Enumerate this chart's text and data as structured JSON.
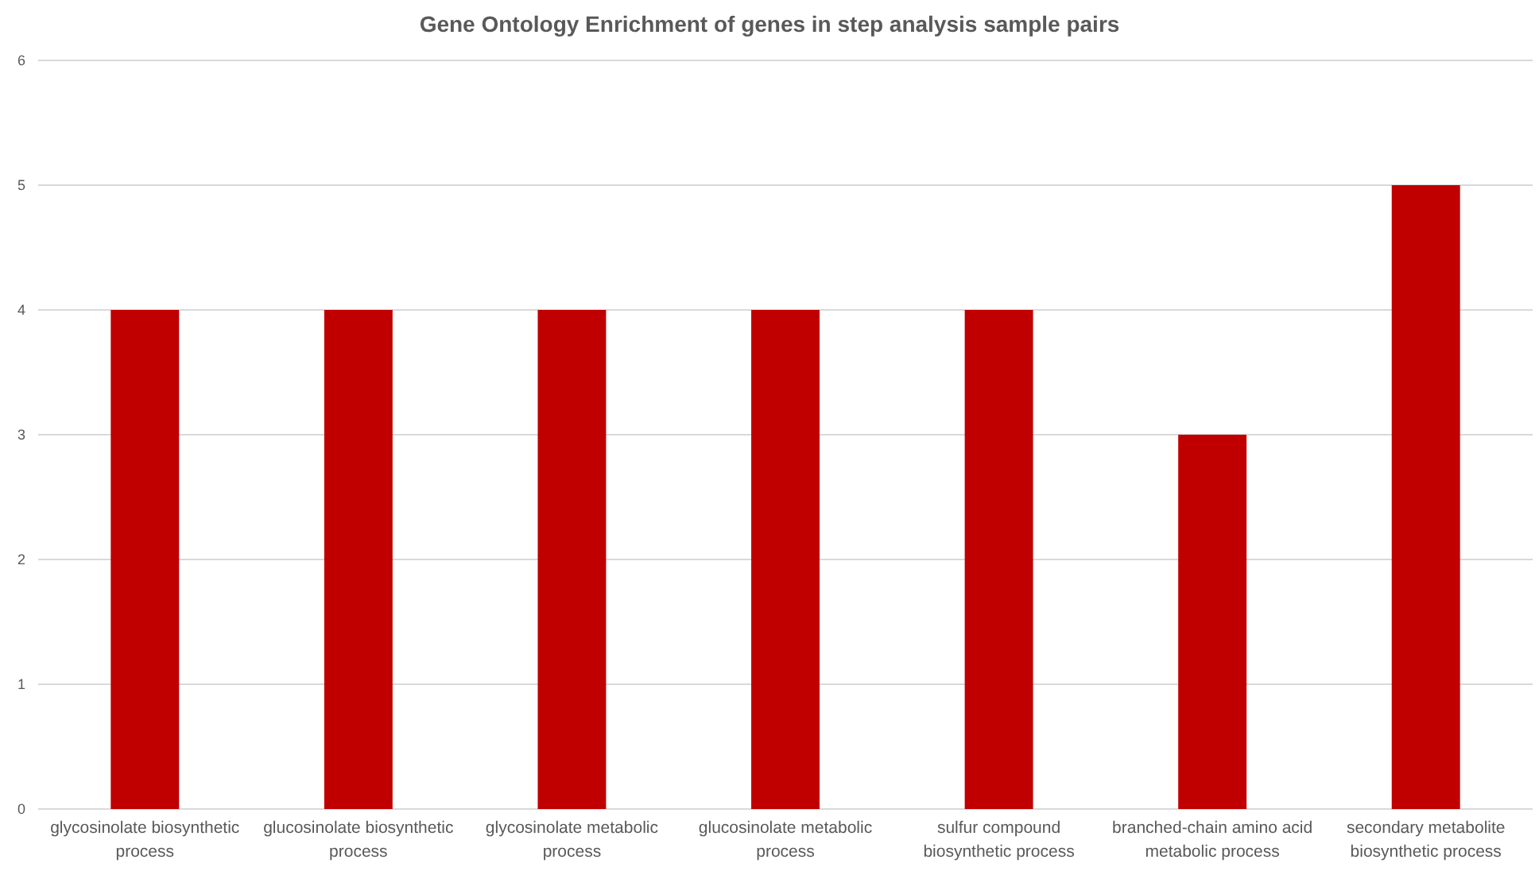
{
  "chart_data": {
    "type": "bar",
    "title": "Gene Ontology Enrichment of genes in step analysis sample pairs",
    "categories": [
      "glycosinolate biosynthetic process",
      "glucosinolate biosynthetic process",
      "glycosinolate metabolic process",
      "glucosinolate metabolic process",
      "sulfur compound biosynthetic process",
      "branched-chain amino acid metabolic process",
      "secondary metabolite biosynthetic process"
    ],
    "values": [
      4,
      4,
      4,
      4,
      4,
      3,
      5
    ],
    "color": "#c00000",
    "ylim": [
      0,
      6
    ],
    "yticks": [
      0,
      1,
      2,
      3,
      4,
      5,
      6
    ],
    "grid": "y"
  }
}
